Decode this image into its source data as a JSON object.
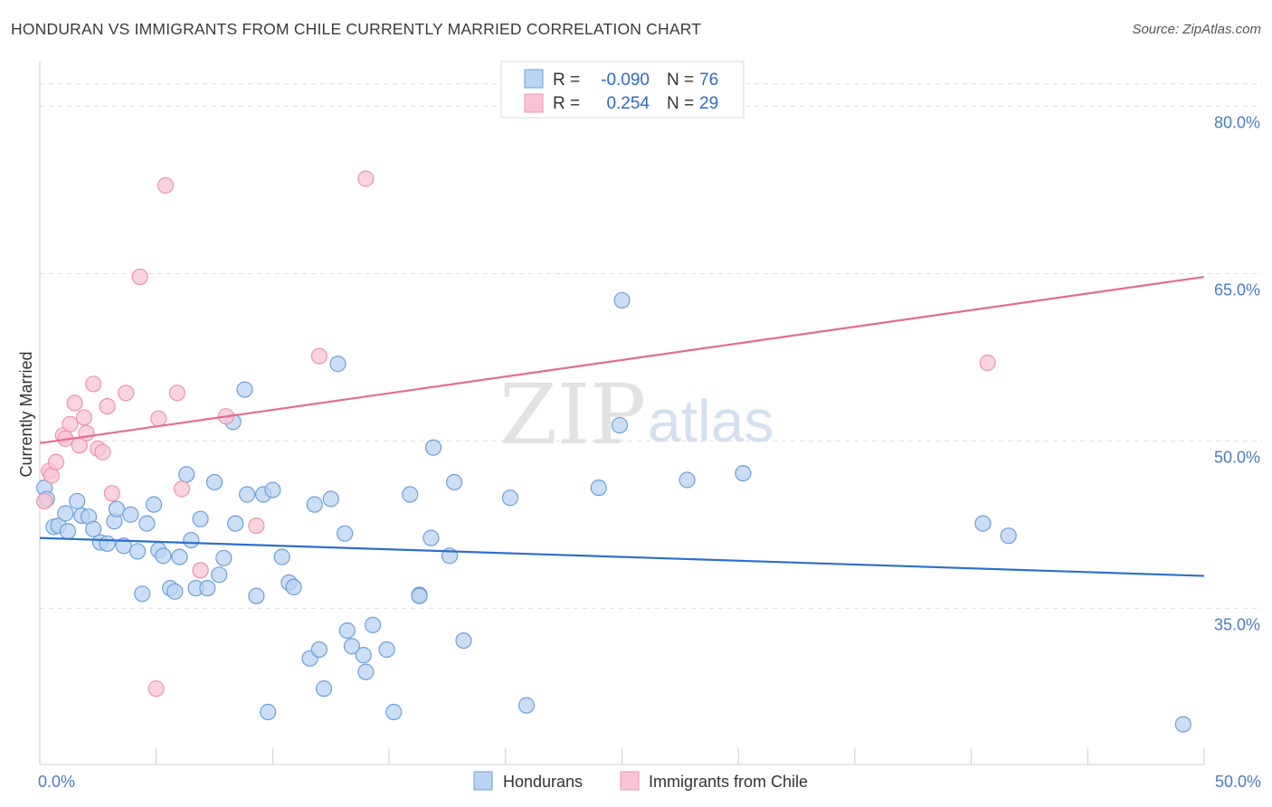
{
  "header": {
    "title": "HONDURAN VS IMMIGRANTS FROM CHILE CURRENTLY MARRIED CORRELATION CHART",
    "source": "Source: ZipAtlas.com"
  },
  "watermark": {
    "zip": "ZIP",
    "atlas": "atlas"
  },
  "colors": {
    "blue_fill": "#b9d3f3",
    "blue_stroke": "#6f9fd8",
    "blue_line": "#2f6fcc",
    "pink_fill": "#f8c4d3",
    "pink_stroke": "#ec94ae",
    "pink_line": "#e36b93",
    "tick_text": "#4a7cc0",
    "grid": "#dddddd"
  },
  "legend": {
    "rows": [
      {
        "r_label": "R =",
        "r_value": "-0.090",
        "n_label": "N =",
        "n_value": "76"
      },
      {
        "r_label": "R =",
        "r_value": "0.254",
        "n_label": "N =",
        "n_value": "29"
      }
    ]
  },
  "bottom_legend": {
    "items": [
      "Hondurans",
      "Immigrants from Chile"
    ]
  },
  "chart_data": {
    "type": "scatter",
    "title": "HONDURAN VS IMMIGRANTS FROM CHILE CURRENTLY MARRIED CORRELATION CHART",
    "ylabel": "Currently Married",
    "xlabel": "",
    "xlim": [
      0,
      50
    ],
    "ylim": [
      21,
      84
    ],
    "x_ticks": [
      "0.0%",
      "50.0%"
    ],
    "y_ticks": [
      {
        "value": 35,
        "label": "35.0%"
      },
      {
        "value": 50,
        "label": "50.0%"
      },
      {
        "value": 65,
        "label": "65.0%"
      },
      {
        "value": 80,
        "label": "80.0%"
      }
    ],
    "grid": "horizontal dashed",
    "legend_position": "top-center",
    "series": [
      {
        "name": "Hondurans",
        "r": -0.09,
        "n": 76,
        "trend": {
          "x": [
            0,
            50
          ],
          "y": [
            41.3,
            37.9
          ]
        },
        "points": [
          [
            0.2,
            45.8
          ],
          [
            0.3,
            44.8
          ],
          [
            0.6,
            42.3
          ],
          [
            0.8,
            42.4
          ],
          [
            1.1,
            43.5
          ],
          [
            1.2,
            41.9
          ],
          [
            1.6,
            44.6
          ],
          [
            1.8,
            43.3
          ],
          [
            2.1,
            43.2
          ],
          [
            2.3,
            42.1
          ],
          [
            2.6,
            40.9
          ],
          [
            2.9,
            40.8
          ],
          [
            3.2,
            42.8
          ],
          [
            3.3,
            43.9
          ],
          [
            3.6,
            40.6
          ],
          [
            3.9,
            43.4
          ],
          [
            4.2,
            40.1
          ],
          [
            4.4,
            36.3
          ],
          [
            4.6,
            42.6
          ],
          [
            4.9,
            44.3
          ],
          [
            5.1,
            40.2
          ],
          [
            5.3,
            39.7
          ],
          [
            5.6,
            36.8
          ],
          [
            5.8,
            36.5
          ],
          [
            6.0,
            39.6
          ],
          [
            6.3,
            47.0
          ],
          [
            6.5,
            41.1
          ],
          [
            6.7,
            36.8
          ],
          [
            6.9,
            43.0
          ],
          [
            7.2,
            36.8
          ],
          [
            7.5,
            46.3
          ],
          [
            7.7,
            38.0
          ],
          [
            7.9,
            39.5
          ],
          [
            8.3,
            51.7
          ],
          [
            8.4,
            42.6
          ],
          [
            8.8,
            54.6
          ],
          [
            8.9,
            45.2
          ],
          [
            9.3,
            36.1
          ],
          [
            9.6,
            45.2
          ],
          [
            9.8,
            25.7
          ],
          [
            10.0,
            45.6
          ],
          [
            10.4,
            39.6
          ],
          [
            10.7,
            37.3
          ],
          [
            10.9,
            36.9
          ],
          [
            11.6,
            30.5
          ],
          [
            11.8,
            44.3
          ],
          [
            12.0,
            31.3
          ],
          [
            12.2,
            27.8
          ],
          [
            12.5,
            44.8
          ],
          [
            12.8,
            56.9
          ],
          [
            13.1,
            41.7
          ],
          [
            13.2,
            33.0
          ],
          [
            13.4,
            31.6
          ],
          [
            13.9,
            30.8
          ],
          [
            14.0,
            29.3
          ],
          [
            14.3,
            33.5
          ],
          [
            14.9,
            31.3
          ],
          [
            15.2,
            25.7
          ],
          [
            15.9,
            45.2
          ],
          [
            16.3,
            36.2
          ],
          [
            16.3,
            36.1
          ],
          [
            16.8,
            41.3
          ],
          [
            16.9,
            49.4
          ],
          [
            17.6,
            39.7
          ],
          [
            17.8,
            46.3
          ],
          [
            18.2,
            32.1
          ],
          [
            20.2,
            44.9
          ],
          [
            20.9,
            26.3
          ],
          [
            24.0,
            45.8
          ],
          [
            24.9,
            51.4
          ],
          [
            25.0,
            62.6
          ],
          [
            27.8,
            46.5
          ],
          [
            30.2,
            47.1
          ],
          [
            40.5,
            42.6
          ],
          [
            41.6,
            41.5
          ],
          [
            49.1,
            24.6
          ]
        ]
      },
      {
        "name": "Immigrants from Chile",
        "r": 0.254,
        "n": 29,
        "trend": {
          "x": [
            0,
            50
          ],
          "y": [
            49.8,
            64.7
          ]
        },
        "points": [
          [
            0.2,
            44.6
          ],
          [
            0.4,
            47.3
          ],
          [
            0.5,
            46.9
          ],
          [
            0.7,
            48.1
          ],
          [
            1.0,
            50.5
          ],
          [
            1.1,
            50.2
          ],
          [
            1.3,
            51.5
          ],
          [
            1.5,
            53.4
          ],
          [
            1.7,
            49.6
          ],
          [
            1.9,
            52.1
          ],
          [
            2.0,
            50.7
          ],
          [
            2.3,
            55.1
          ],
          [
            2.5,
            49.3
          ],
          [
            2.7,
            49.0
          ],
          [
            2.9,
            53.1
          ],
          [
            3.1,
            45.3
          ],
          [
            3.7,
            54.3
          ],
          [
            4.3,
            64.7
          ],
          [
            5.0,
            27.8
          ],
          [
            5.1,
            52.0
          ],
          [
            5.4,
            72.9
          ],
          [
            5.9,
            54.3
          ],
          [
            6.1,
            45.7
          ],
          [
            6.9,
            38.4
          ],
          [
            8.0,
            52.2
          ],
          [
            9.3,
            42.4
          ],
          [
            12.0,
            57.6
          ],
          [
            14.0,
            73.5
          ],
          [
            40.7,
            57.0
          ]
        ]
      }
    ]
  }
}
